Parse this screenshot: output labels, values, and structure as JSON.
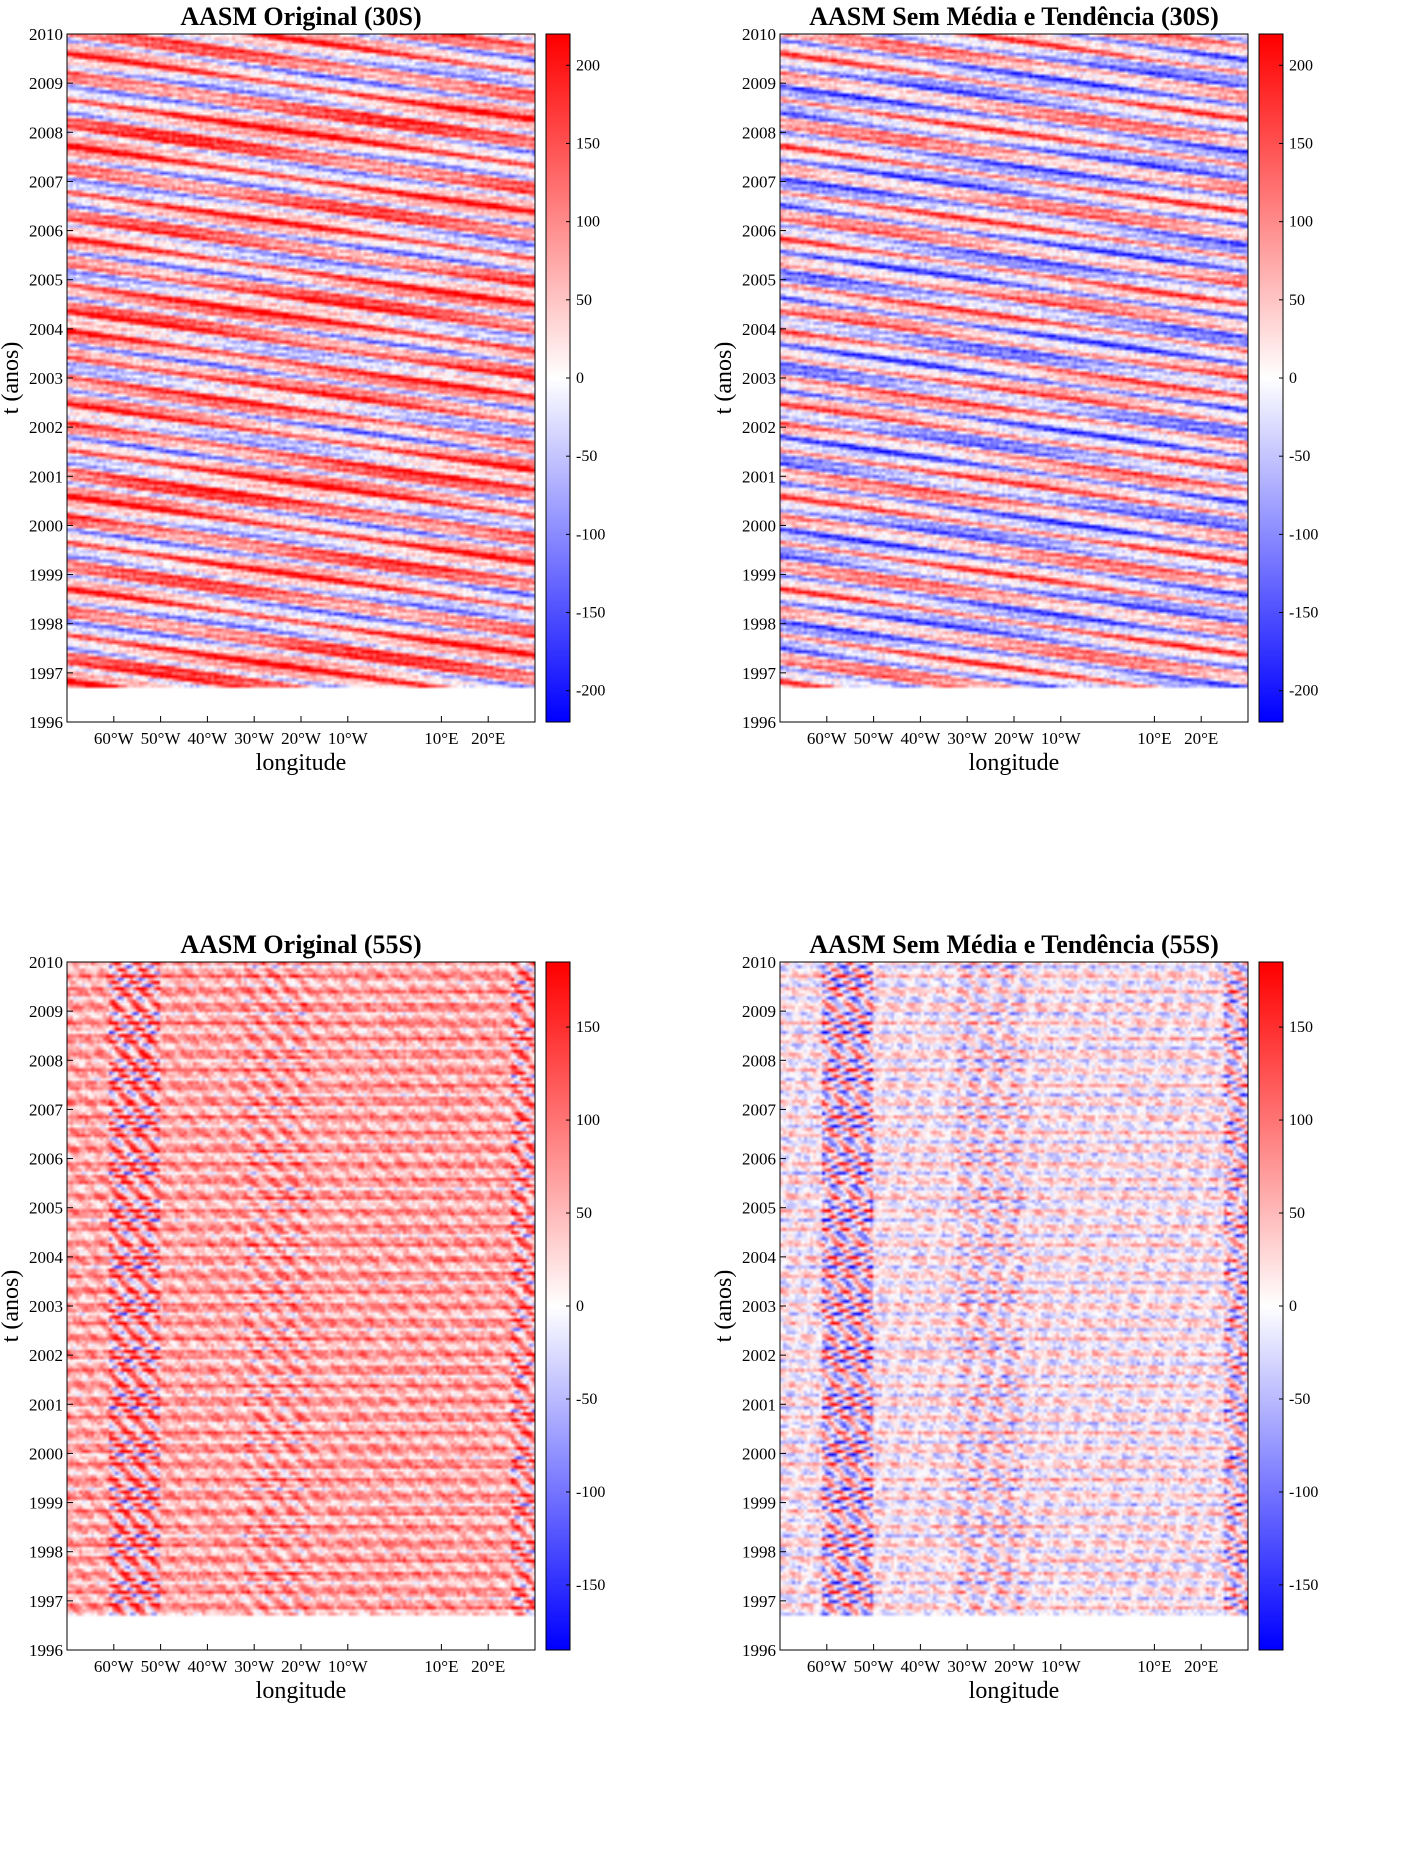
{
  "colors": {
    "negative": "#0000ff",
    "neutral": "#ffffff",
    "positive": "#ff0000"
  },
  "chart_data": [
    {
      "type": "heatmap",
      "title": "AASM Original (30S)",
      "xlabel": "longitude",
      "ylabel": "t (anos)",
      "xticks": [
        "60°W",
        "50°W",
        "40°W",
        "30°W",
        "20°W",
        "10°W",
        "10°E",
        "20°E"
      ],
      "xtick_values": [
        -60,
        -50,
        -40,
        -30,
        -20,
        -10,
        10,
        20
      ],
      "xlim": [
        -70,
        30
      ],
      "yticks": [
        "1996",
        "1997",
        "1998",
        "1999",
        "2000",
        "2001",
        "2002",
        "2003",
        "2004",
        "2005",
        "2006",
        "2007",
        "2008",
        "2009",
        "2010"
      ],
      "ylim": [
        1996,
        2010
      ],
      "data_time_range": [
        1996.7,
        2010
      ],
      "colorbar": {
        "ticks": [
          200,
          150,
          100,
          50,
          0,
          -50,
          -100,
          -150,
          -200
        ],
        "range": [
          -220,
          220
        ],
        "colormap": "blue-white-red"
      },
      "pattern": "westward-propagating diagonal bands",
      "mean_bias": 0.35,
      "grid": false
    },
    {
      "type": "heatmap",
      "title": "AASM Sem Média e Tendência (30S)",
      "xlabel": "longitude",
      "ylabel": "t (anos)",
      "xticks": [
        "60°W",
        "50°W",
        "40°W",
        "30°W",
        "20°W",
        "10°W",
        "10°E",
        "20°E"
      ],
      "xtick_values": [
        -60,
        -50,
        -40,
        -30,
        -20,
        -10,
        10,
        20
      ],
      "xlim": [
        -70,
        30
      ],
      "yticks": [
        "1996",
        "1997",
        "1998",
        "1999",
        "2000",
        "2001",
        "2002",
        "2003",
        "2004",
        "2005",
        "2006",
        "2007",
        "2008",
        "2009",
        "2010"
      ],
      "ylim": [
        1996,
        2010
      ],
      "data_time_range": [
        1996.7,
        2010
      ],
      "colorbar": {
        "ticks": [
          200,
          150,
          100,
          50,
          0,
          -50,
          -100,
          -150,
          -200
        ],
        "range": [
          -220,
          220
        ],
        "colormap": "blue-white-red"
      },
      "pattern": "westward-propagating diagonal bands",
      "mean_bias": 0.0,
      "grid": false
    },
    {
      "type": "heatmap",
      "title": "AASM Original (55S)",
      "xlabel": "longitude",
      "ylabel": "t (anos)",
      "xticks": [
        "60°W",
        "50°W",
        "40°W",
        "30°W",
        "20°W",
        "10°W",
        "10°E",
        "20°E"
      ],
      "xtick_values": [
        -60,
        -50,
        -40,
        -30,
        -20,
        -10,
        10,
        20
      ],
      "xlim": [
        -70,
        30
      ],
      "yticks": [
        "1996",
        "1997",
        "1998",
        "1999",
        "2000",
        "2001",
        "2002",
        "2003",
        "2004",
        "2005",
        "2006",
        "2007",
        "2008",
        "2009",
        "2010"
      ],
      "ylim": [
        1996,
        2010
      ],
      "data_time_range": [
        1996.7,
        2010
      ],
      "colorbar": {
        "ticks": [
          150,
          100,
          50,
          0,
          -50,
          -100,
          -150
        ],
        "range": [
          -185,
          185
        ],
        "colormap": "blue-white-red"
      },
      "pattern": "vertical streaks with horizontal banding",
      "mean_bias": 0.4,
      "grid": false
    },
    {
      "type": "heatmap",
      "title": "AASM Sem Média e Tendência (55S)",
      "xlabel": "longitude",
      "ylabel": "t (anos)",
      "xticks": [
        "60°W",
        "50°W",
        "40°W",
        "30°W",
        "20°W",
        "10°W",
        "10°E",
        "20°E"
      ],
      "xtick_values": [
        -60,
        -50,
        -40,
        -30,
        -20,
        -10,
        10,
        20
      ],
      "xlim": [
        -70,
        30
      ],
      "yticks": [
        "1996",
        "1997",
        "1998",
        "1999",
        "2000",
        "2001",
        "2002",
        "2003",
        "2004",
        "2005",
        "2006",
        "2007",
        "2008",
        "2009",
        "2010"
      ],
      "ylim": [
        1996,
        2010
      ],
      "data_time_range": [
        1996.7,
        2010
      ],
      "colorbar": {
        "ticks": [
          150,
          100,
          50,
          0,
          -50,
          -100,
          -150
        ],
        "range": [
          -185,
          185
        ],
        "colormap": "blue-white-red"
      },
      "pattern": "vertical streaks with horizontal banding",
      "mean_bias": 0.05,
      "grid": false
    }
  ]
}
